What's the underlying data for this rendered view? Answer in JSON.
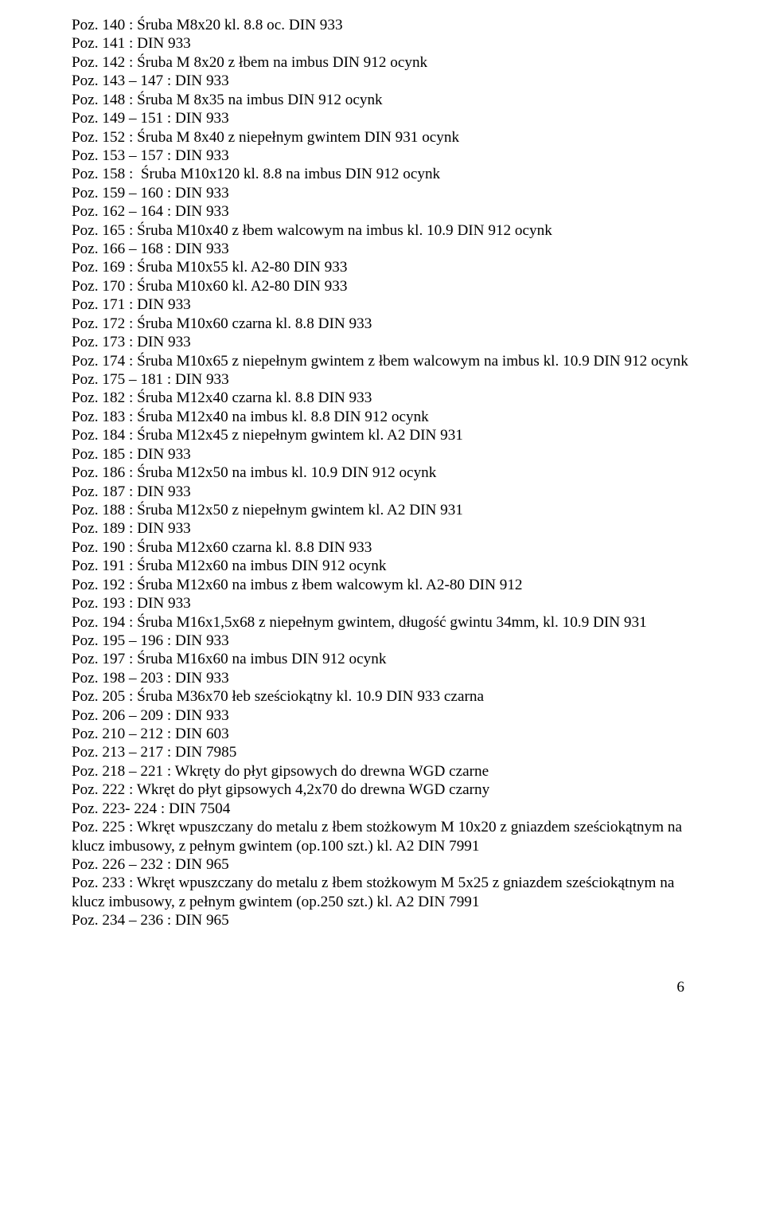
{
  "lines": [
    "Poz. 140 : Śruba M8x20 kl. 8.8 oc. DIN 933",
    "Poz. 141 : DIN 933",
    "Poz. 142 : Śruba M 8x20 z łbem na imbus DIN 912 ocynk",
    "Poz. 143 – 147 : DIN 933",
    "Poz. 148 : Śruba M 8x35 na imbus DIN 912 ocynk",
    "Poz. 149 – 151 : DIN 933",
    "Poz. 152 : Śruba M 8x40 z niepełnym gwintem DIN 931 ocynk",
    "Poz. 153 – 157 : DIN 933",
    "Poz. 158 :  Śruba M10x120 kl. 8.8 na imbus DIN 912 ocynk",
    "Poz. 159 – 160 : DIN 933",
    "Poz. 162 – 164 : DIN 933",
    "Poz. 165 : Śruba M10x40 z łbem walcowym na imbus kl. 10.9 DIN 912 ocynk",
    "Poz. 166 – 168 : DIN 933",
    "Poz. 169 : Śruba M10x55 kl. A2-80 DIN 933",
    "Poz. 170 : Śruba M10x60 kl. A2-80 DIN 933",
    "Poz. 171 : DIN 933",
    "Poz. 172 : Śruba M10x60 czarna kl. 8.8 DIN 933",
    "Poz. 173 : DIN 933",
    "Poz. 174 : Śruba M10x65 z niepełnym gwintem z łbem walcowym na imbus kl. 10.9 DIN 912 ocynk",
    "Poz. 175 – 181 : DIN 933",
    "Poz. 182 : Śruba M12x40 czarna kl. 8.8 DIN 933",
    "Poz. 183 : Śruba M12x40 na imbus kl. 8.8 DIN 912 ocynk",
    "Poz. 184 : Śruba M12x45 z niepełnym gwintem kl. A2 DIN 931",
    "Poz. 185 : DIN 933",
    "Poz. 186 : Śruba M12x50 na imbus kl. 10.9 DIN 912 ocynk",
    "Poz. 187 : DIN 933",
    "Poz. 188 : Śruba M12x50 z niepełnym gwintem kl. A2 DIN 931",
    "Poz. 189 : DIN 933",
    "Poz. 190 : Śruba M12x60 czarna kl. 8.8 DIN 933",
    "Poz. 191 : Śruba M12x60 na imbus DIN 912 ocynk",
    "Poz. 192 : Śruba M12x60 na imbus z łbem walcowym kl. A2-80 DIN 912",
    "Poz. 193 : DIN 933",
    "Poz. 194 : Śruba M16x1,5x68 z niepełnym gwintem, długość gwintu 34mm, kl. 10.9 DIN 931",
    "Poz. 195 – 196 : DIN 933",
    "Poz. 197 : Śruba M16x60 na imbus DIN 912 ocynk",
    "Poz. 198 – 203 : DIN 933",
    "Poz. 205 : Śruba M36x70 łeb sześciokątny kl. 10.9 DIN 933 czarna",
    "Poz. 206 – 209 : DIN 933",
    "Poz. 210 – 212 : DIN 603",
    "Poz. 213 – 217 : DIN 7985",
    "Poz. 218 – 221 : Wkręty do płyt gipsowych do drewna WGD czarne",
    "Poz. 222 : Wkręt do płyt gipsowych 4,2x70 do drewna WGD czarny",
    "Poz. 223- 224 : DIN 7504",
    "Poz. 225 : Wkręt wpuszczany do metalu z łbem stożkowym M 10x20 z gniazdem sześciokątnym na klucz imbusowy, z pełnym gwintem (op.100 szt.) kl. A2 DIN 7991",
    "Poz. 226 – 232 : DIN 965",
    "Poz. 233 : Wkręt wpuszczany do metalu z łbem stożkowym M 5x25 z gniazdem sześciokątnym na klucz imbusowy, z pełnym gwintem (op.250 szt.) kl. A2 DIN 7991",
    "Poz. 234 – 236 : DIN 965"
  ],
  "pageNumber": "6"
}
